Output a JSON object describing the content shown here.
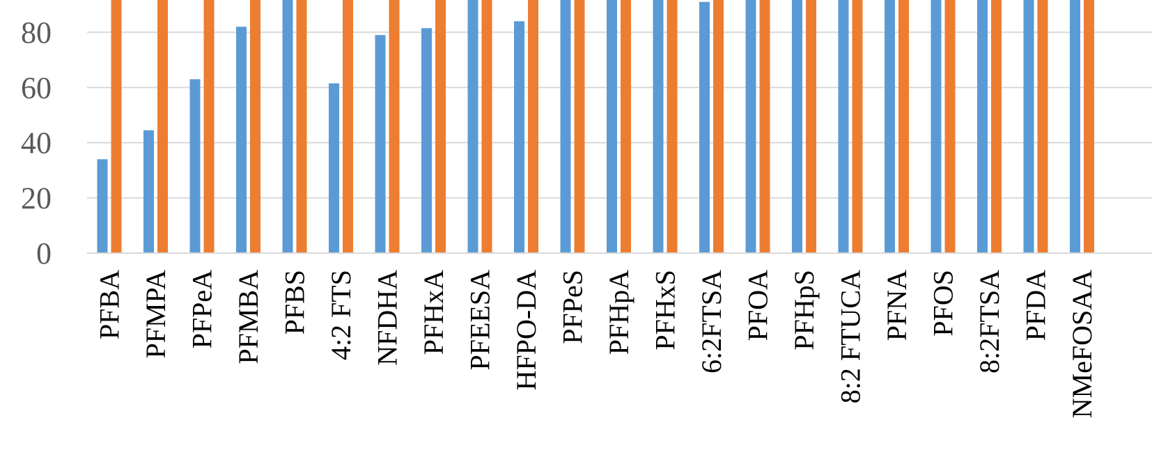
{
  "chart_data": {
    "type": "bar",
    "title": "",
    "xlabel": "",
    "ylabel": "",
    "ylim": [
      0,
      92
    ],
    "yticks": [
      0,
      20,
      40,
      60,
      80
    ],
    "grid": true,
    "categories": [
      "PFBA",
      "PFMPA",
      "PFPeA",
      "PFMBA",
      "PFBS",
      "4:2 FTS",
      "NFDHA",
      "PFHxA",
      "PFEESA",
      "HFPO-DA",
      "PFPeS",
      "PFHpA",
      "PFHxS",
      "6:2FTSA",
      "PFOA",
      "PFHpS",
      "8:2 FTUCA",
      "PFNA",
      "PFOS",
      "8:2FTSA",
      "PFDA",
      "NMeFOSAA"
    ],
    "series": [
      {
        "color": "#5b9bd5",
        "values": [
          34,
          44.5,
          63,
          82,
          100,
          61.5,
          79,
          81.5,
          100,
          84,
          100,
          100,
          100,
          91,
          100,
          100,
          100,
          100,
          100,
          100,
          100,
          100
        ]
      },
      {
        "color": "#ed7d31",
        "values": [
          100,
          100,
          100,
          100,
          100,
          100,
          100,
          100,
          100,
          100,
          100,
          100,
          100,
          100,
          100,
          100,
          100,
          100,
          100,
          100,
          100,
          100
        ]
      }
    ]
  }
}
